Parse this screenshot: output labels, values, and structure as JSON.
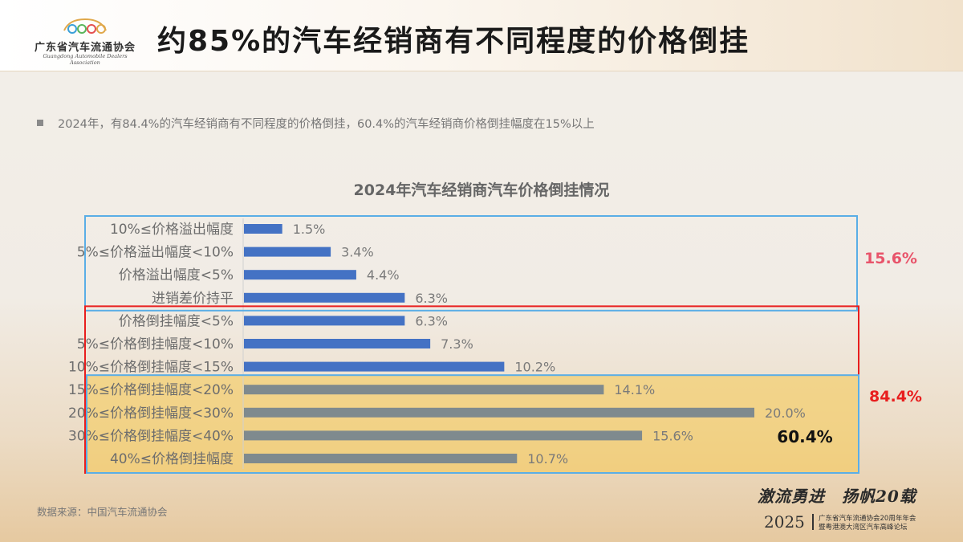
{
  "header": {
    "logo_text": "广东省汽车流通协会",
    "logo_en": "Guangdong Automobile Dealers Association",
    "title": "约85%的汽车经销商有不同程度的价格倒挂"
  },
  "bullet": "2024年，有84.4%的汽车经销商有不同程度的价格倒挂，60.4%的汽车经销商价格倒挂幅度在15%以上",
  "chart_data": {
    "type": "bar",
    "orientation": "horizontal",
    "title": "2024年汽车经销商汽车价格倒挂情况",
    "categories": [
      "10%≤价格溢出幅度",
      "5%≤价格溢出幅度<10%",
      "价格溢出幅度<5%",
      "进销差价持平",
      "价格倒挂幅度<5%",
      "5%≤价格倒挂幅度<10%",
      "10%≤价格倒挂幅度<15%",
      "15%≤价格倒挂幅度<20%",
      "20%≤价格倒挂幅度<30%",
      "30%≤价格倒挂幅度<40%",
      "40%≤价格倒挂幅度"
    ],
    "values": [
      1.5,
      3.4,
      4.4,
      6.3,
      6.3,
      7.3,
      10.2,
      14.1,
      20.0,
      15.6,
      10.7
    ],
    "value_labels": [
      "1.5%",
      "3.4%",
      "4.4%",
      "6.3%",
      "6.3%",
      "7.3%",
      "10.2%",
      "14.1%",
      "20.0%",
      "15.6%",
      "10.7%"
    ],
    "bar_colors": [
      "#4472c4",
      "#4472c4",
      "#4472c4",
      "#4472c4",
      "#4472c4",
      "#4472c4",
      "#4472c4",
      "#7f8a8e",
      "#7f8a8e",
      "#7f8a8e",
      "#7f8a8e"
    ],
    "xlim": [
      0,
      20
    ],
    "grid": false,
    "group_annotations": [
      {
        "label": "15.6%",
        "color": "#e8546b",
        "box_color": "#5aaee6",
        "from_index": 0,
        "to_index": 3
      },
      {
        "label": "84.4%",
        "color": "#e81e1e",
        "box_color": "#e81e1e",
        "from_index": 4,
        "to_index": 10
      },
      {
        "label": "60.4%",
        "color": "#111111",
        "box_color": "#5aaee6",
        "from_index": 7,
        "to_index": 10
      }
    ]
  },
  "source": "数据来源：中国汽车流通协会",
  "brand": {
    "slogan": "激流勇进　扬帆20载",
    "year": "2025",
    "line1": "广东省汽车流通协会20周年年会",
    "line2": "暨粤港澳大湾区汽车高峰论坛"
  }
}
